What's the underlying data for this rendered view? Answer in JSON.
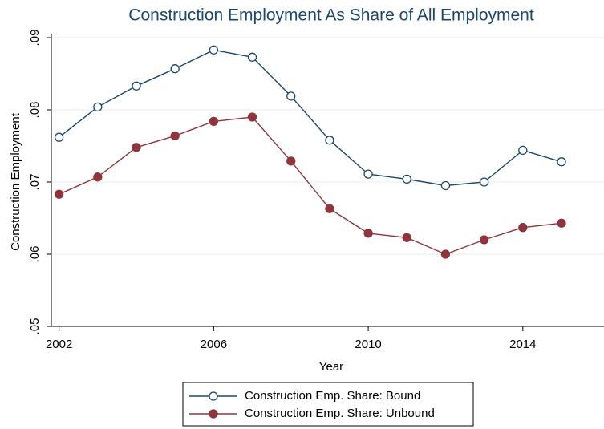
{
  "chart_data": {
    "type": "line",
    "title": "Construction Employment As Share of All Employment",
    "x_label": "Year",
    "y_label": "Construction Employment",
    "x": [
      2002,
      2003,
      2004,
      2005,
      2006,
      2007,
      2008,
      2009,
      2010,
      2011,
      2012,
      2013,
      2014,
      2015
    ],
    "series": [
      {
        "name": "Construction Emp. Share: Bound",
        "color": "#1a476f",
        "marker": "hollow-circle",
        "values": [
          0.0762,
          0.0804,
          0.0833,
          0.0857,
          0.0883,
          0.0873,
          0.0819,
          0.0758,
          0.0711,
          0.0704,
          0.0695,
          0.07,
          0.0744,
          0.0728
        ]
      },
      {
        "name": "Construction Emp. Share: Unbound",
        "color": "#90353b",
        "marker": "filled-circle",
        "values": [
          0.0683,
          0.0707,
          0.0748,
          0.0764,
          0.0784,
          0.079,
          0.0729,
          0.0663,
          0.0629,
          0.0623,
          0.06,
          0.062,
          0.0637,
          0.0643
        ]
      }
    ],
    "xlim": [
      2001.8,
      2016.1
    ],
    "xticks": [
      2002,
      2006,
      2010,
      2014
    ],
    "ylim": [
      0.05,
      0.09
    ],
    "yticks": [
      {
        "value": 0.05,
        "label": ".05"
      },
      {
        "value": 0.06,
        "label": ".06"
      },
      {
        "value": 0.07,
        "label": ".07"
      },
      {
        "value": 0.08,
        "label": ".08"
      },
      {
        "value": 0.09,
        "label": ".09"
      }
    ],
    "grid": true
  }
}
